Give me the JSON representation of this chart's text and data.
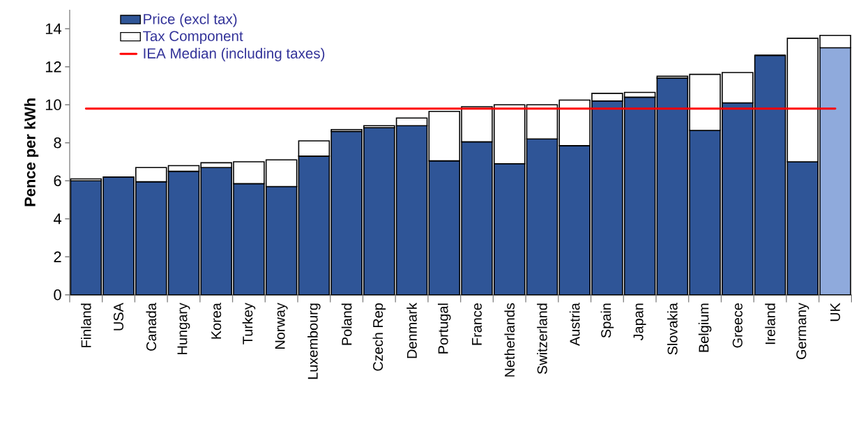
{
  "chart_data": {
    "type": "bar",
    "stacked": true,
    "ylabel": "Pence per kWh",
    "categories": [
      "Finland",
      "USA",
      "Canada",
      "Hungary",
      "Korea",
      "Turkey",
      "Norway",
      "Luxembourg",
      "Poland",
      "Czech Rep",
      "Denmark",
      "Portugal",
      "France",
      "Netherlands",
      "Switzerland",
      "Austria",
      "Spain",
      "Japan",
      "Slovakia",
      "Belgium",
      "Greece",
      "Ireland",
      "Germany",
      "UK"
    ],
    "series": [
      {
        "name": "Price (excl tax)",
        "color": "#2f5597",
        "colors": [
          "#2f5597",
          "#2f5597",
          "#2f5597",
          "#2f5597",
          "#2f5597",
          "#2f5597",
          "#2f5597",
          "#2f5597",
          "#2f5597",
          "#2f5597",
          "#2f5597",
          "#2f5597",
          "#2f5597",
          "#2f5597",
          "#2f5597",
          "#2f5597",
          "#2f5597",
          "#2f5597",
          "#2f5597",
          "#2f5597",
          "#2f5597",
          "#2f5597",
          "#2f5597",
          "#8faadc"
        ],
        "values": [
          6.0,
          6.2,
          5.95,
          6.5,
          6.7,
          5.85,
          5.7,
          7.3,
          8.6,
          8.8,
          8.9,
          7.05,
          8.05,
          6.9,
          8.2,
          7.85,
          10.2,
          10.4,
          11.4,
          8.65,
          10.1,
          12.6,
          7.0,
          13.0
        ]
      },
      {
        "name": "Tax Component",
        "color": "#ffffff",
        "values": [
          0.1,
          0.0,
          0.75,
          0.3,
          0.25,
          1.15,
          1.4,
          0.8,
          0.1,
          0.1,
          0.4,
          2.6,
          1.85,
          3.1,
          1.8,
          2.4,
          0.4,
          0.25,
          0.1,
          2.95,
          1.6,
          0.0,
          6.5,
          0.65
        ]
      }
    ],
    "ref_lines": [
      {
        "axis": "y",
        "value": 9.8,
        "label": "IEA Median (including taxes)",
        "color": "#ff0000",
        "line_style": "solid"
      }
    ],
    "ylim": [
      0,
      15
    ],
    "yticks": [
      0,
      2,
      4,
      6,
      8,
      10,
      12,
      14
    ],
    "grid": false,
    "legend": "top left"
  }
}
